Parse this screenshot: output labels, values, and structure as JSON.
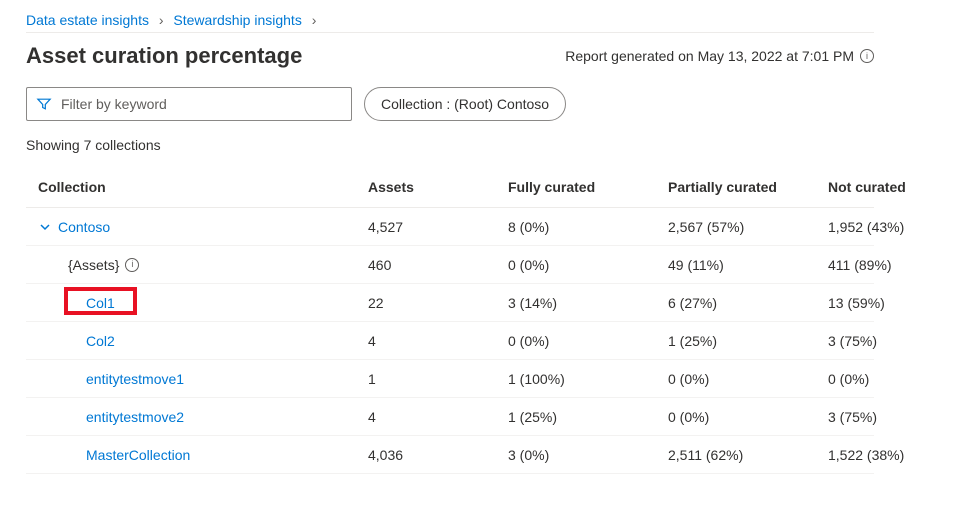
{
  "breadcrumb": {
    "item1": "Data estate insights",
    "item2": "Stewardship insights"
  },
  "header": {
    "title": "Asset curation percentage",
    "report_generated": "Report generated on May 13, 2022 at 7:01 PM"
  },
  "toolbar": {
    "filter_placeholder": "Filter by keyword",
    "collection_chip": "Collection : (Root) Contoso"
  },
  "summary": {
    "showing": "Showing 7 collections"
  },
  "table": {
    "columns": {
      "collection": "Collection",
      "assets": "Assets",
      "fully": "Fully curated",
      "partially": "Partially curated",
      "not": "Not curated"
    },
    "rows": [
      {
        "name": "Contoso",
        "indent": 0,
        "expandable": true,
        "link": true,
        "assets": "4,527",
        "fully": "8 (0%)",
        "partially": "2,567 (57%)",
        "not": "1,952 (43%)"
      },
      {
        "name": "{Assets}",
        "indent": 1,
        "expandable": false,
        "link": false,
        "info": true,
        "assets": "460",
        "fully": "0 (0%)",
        "partially": "49 (11%)",
        "not": "411 (89%)"
      },
      {
        "name": "Col1",
        "indent": 2,
        "expandable": false,
        "link": true,
        "highlight": true,
        "assets": "22",
        "fully": "3 (14%)",
        "partially": "6 (27%)",
        "not": "13 (59%)"
      },
      {
        "name": "Col2",
        "indent": 2,
        "expandable": false,
        "link": true,
        "assets": "4",
        "fully": "0 (0%)",
        "partially": "1 (25%)",
        "not": "3 (75%)"
      },
      {
        "name": "entitytestmove1",
        "indent": 2,
        "expandable": false,
        "link": true,
        "assets": "1",
        "fully": "1 (100%)",
        "partially": "0 (0%)",
        "not": "0 (0%)"
      },
      {
        "name": "entitytestmove2",
        "indent": 2,
        "expandable": false,
        "link": true,
        "assets": "4",
        "fully": "1 (25%)",
        "partially": "0 (0%)",
        "not": "3 (75%)"
      },
      {
        "name": "MasterCollection",
        "indent": 2,
        "expandable": false,
        "link": true,
        "assets": "4,036",
        "fully": "3 (0%)",
        "partially": "2,511 (62%)",
        "not": "1,522 (38%)"
      }
    ]
  },
  "colors": {
    "link": "#0078d4",
    "highlight": "#e81123",
    "border": "#edebe9",
    "text": "#323130",
    "text_secondary": "#605e5c"
  }
}
